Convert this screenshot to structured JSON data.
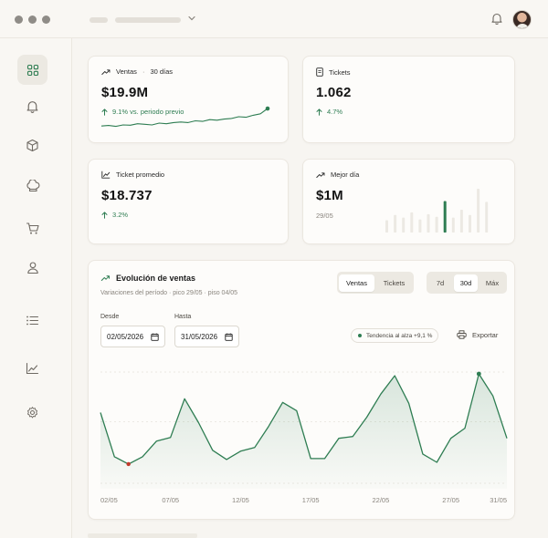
{
  "icons": {
    "menu_chevron": "chevron-down-icon",
    "top_bell": "bell-icon",
    "sidebar": [
      "dashboard-grid-icon",
      "bell-icon",
      "box-icon",
      "chef-hat-icon",
      "cart-icon",
      "user-icon",
      "list-icon",
      "chart-icon",
      "gear-icon"
    ],
    "trend_up": "trending-up-icon",
    "arrow_up": "arrow-up-icon",
    "receipt": "receipt-icon",
    "calendar": "calendar-icon",
    "printer": "printer-icon"
  },
  "colors": {
    "accent": "#2e7d52",
    "accent_light": "#cfe3d6",
    "bar_muted": "#ece9e3",
    "low_point": "#c0392b",
    "background": "#f7f5f1"
  },
  "kpis": {
    "ventas": {
      "label": "Ventas",
      "period": "30 días",
      "value": "$19.9M",
      "delta": "9.1% vs. periodo previo",
      "sparkline": [
        0.18,
        0.2,
        0.17,
        0.22,
        0.21,
        0.26,
        0.24,
        0.22,
        0.28,
        0.26,
        0.3,
        0.32,
        0.3,
        0.36,
        0.34,
        0.4,
        0.38,
        0.42,
        0.44,
        0.5,
        0.48,
        0.55,
        0.6,
        0.78
      ]
    },
    "tickets": {
      "label": "Tickets",
      "value": "1.062",
      "delta": "4.7%"
    },
    "ticket_promedio": {
      "label": "Ticket promedio",
      "value": "$18.737",
      "delta": "3.2%"
    },
    "mejor_dia": {
      "label": "Mejor día",
      "value": "$1M",
      "date": "29/05",
      "bars": [
        0.28,
        0.4,
        0.34,
        0.46,
        0.3,
        0.42,
        0.36,
        0.72,
        0.34,
        0.52,
        0.4,
        1.0,
        0.7
      ],
      "highlight_index": 7
    }
  },
  "chart": {
    "title": "Evolución de ventas",
    "subtitle": "Variaciones del período · pico 29/05 · piso 04/05",
    "metric_tabs": [
      {
        "label": "Ventas",
        "active": true
      },
      {
        "label": "Tickets",
        "active": false
      }
    ],
    "range_tabs": [
      {
        "label": "7d",
        "active": false
      },
      {
        "label": "30d",
        "active": true
      },
      {
        "label": "Máx",
        "active": false
      }
    ],
    "desde_label": "Desde",
    "desde_value": "02/05/2026",
    "hasta_label": "Hasta",
    "hasta_value": "31/05/2026",
    "trend_badge": "Tendencia al alza +9,1 %",
    "export_label": "Exportar"
  },
  "chart_data": {
    "type": "area",
    "x": [
      "02/05",
      "03/05",
      "04/05",
      "05/05",
      "06/05",
      "07/05",
      "08/05",
      "09/05",
      "10/05",
      "11/05",
      "12/05",
      "13/05",
      "14/05",
      "15/05",
      "16/05",
      "17/05",
      "18/05",
      "19/05",
      "20/05",
      "21/05",
      "22/05",
      "23/05",
      "24/05",
      "25/05",
      "26/05",
      "27/05",
      "28/05",
      "29/05",
      "30/05",
      "31/05"
    ],
    "values": [
      0.58,
      0.1,
      0.02,
      0.1,
      0.27,
      0.31,
      0.73,
      0.47,
      0.17,
      0.07,
      0.16,
      0.2,
      0.43,
      0.69,
      0.6,
      0.08,
      0.08,
      0.3,
      0.32,
      0.53,
      0.78,
      0.98,
      0.68,
      0.13,
      0.04,
      0.3,
      0.41,
      1.0,
      0.76,
      0.3
    ],
    "xticks": [
      "02/05",
      "07/05",
      "12/05",
      "17/05",
      "22/05",
      "27/05",
      "31/05"
    ],
    "peak_label": "29/05",
    "trough_label": "04/05",
    "grid": "horizontal dashed"
  }
}
